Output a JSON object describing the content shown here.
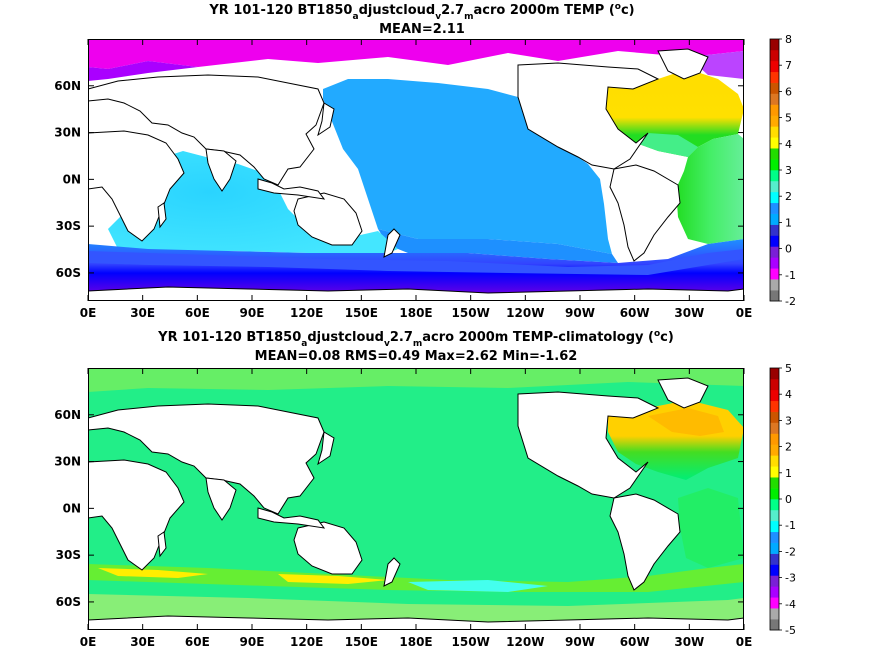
{
  "chart_data": [
    {
      "type": "heatmap",
      "title_parts": [
        "YR 101-120 BT1850",
        "a",
        "djustcloud",
        "v",
        "2.7",
        "m",
        "acro 2000m TEMP (",
        "o",
        "c)"
      ],
      "subtitle": "MEAN=2.11",
      "x_tick_labels": [
        "0E",
        "30E",
        "60E",
        "90E",
        "120E",
        "150E",
        "180E",
        "150W",
        "120W",
        "90W",
        "60W",
        "30W",
        "0E"
      ],
      "y_tick_labels": [
        "60N",
        "30N",
        "0N",
        "30S",
        "60S"
      ],
      "y_tick_values": [
        60,
        30,
        0,
        -30,
        -60
      ],
      "xlim": [
        0,
        360
      ],
      "ylim": [
        -78,
        90
      ],
      "colorbar_labels": [
        "-2",
        "-1",
        "0",
        "1",
        "2",
        "3",
        "4",
        "5",
        "6",
        "7",
        "8"
      ],
      "colorbar_values": [
        -2,
        -1,
        0,
        1,
        2,
        3,
        4,
        5,
        6,
        7,
        8
      ],
      "colorbar_colors": [
        "#777777",
        "#aaaaaa",
        "#ff00ff",
        "#aa00ff",
        "#7a1fd6",
        "#0000ff",
        "#3333cc",
        "#00aaff",
        "#1e90ff",
        "#00ffff",
        "#55eecc",
        "#00ff88",
        "#00ee00",
        "#22dd00",
        "#ffff00",
        "#ffdd00",
        "#ffaa00",
        "#ff9900",
        "#dd7722",
        "#cc5500",
        "#ff3300",
        "#ee0000",
        "#cc0000",
        "#990000"
      ],
      "regions": [
        {
          "lon": [
            90,
            290
          ],
          "lat": [
            -55,
            60
          ],
          "value": 2.2
        },
        {
          "lon": [
            25,
            115
          ],
          "lat": [
            -58,
            25
          ],
          "value": 2.6
        },
        {
          "lon": [
            300,
            360
          ],
          "lat": [
            -58,
            10
          ],
          "value": 3.4
        },
        {
          "lon": [
            300,
            355
          ],
          "lat": [
            10,
            70
          ],
          "value": 4.6
        },
        {
          "lon": [
            0,
            360
          ],
          "lat": [
            -78,
            -58
          ],
          "value": -0.8
        },
        {
          "lon": [
            0,
            360
          ],
          "lat": [
            -58,
            -50
          ],
          "value": 0.6
        },
        {
          "lon": [
            0,
            360
          ],
          "lat": [
            80,
            90
          ],
          "value": -0.9
        }
      ]
    },
    {
      "type": "heatmap",
      "title_parts": [
        "YR 101-120 BT1850",
        "a",
        "djustcloud",
        "v",
        "2.7",
        "m",
        "acro 2000m TEMP-climatology (",
        "o",
        "c)"
      ],
      "subtitle": "MEAN=0.08   RMS=0.49   Max=2.62   Min=-1.62",
      "x_tick_labels": [
        "0E",
        "30E",
        "60E",
        "90E",
        "120E",
        "150E",
        "180E",
        "150W",
        "120W",
        "90W",
        "60W",
        "30W",
        "0E"
      ],
      "y_tick_labels": [
        "60N",
        "30N",
        "0N",
        "30S",
        "60S"
      ],
      "y_tick_values": [
        60,
        30,
        0,
        -30,
        -60
      ],
      "xlim": [
        0,
        360
      ],
      "ylim": [
        -78,
        90
      ],
      "colorbar_labels": [
        "-5",
        "-4",
        "-3",
        "-2",
        "-1",
        "0",
        "1",
        "2",
        "3",
        "4",
        "5"
      ],
      "colorbar_values": [
        -5,
        -4,
        -3,
        -2,
        -1,
        0,
        1,
        2,
        3,
        4,
        5
      ],
      "colorbar_colors": [
        "#777777",
        "#aaaaaa",
        "#ff00ff",
        "#aa00ff",
        "#7a1fd6",
        "#0000ff",
        "#3333cc",
        "#00aaff",
        "#1e90ff",
        "#00ffff",
        "#55eecc",
        "#00ff88",
        "#00ee00",
        "#22dd00",
        "#ffff00",
        "#ffdd00",
        "#ffaa00",
        "#ff9900",
        "#dd7722",
        "#cc5500",
        "#ff3300",
        "#ee0000",
        "#cc0000",
        "#990000"
      ],
      "regions": [
        {
          "lon": [
            0,
            360
          ],
          "lat": [
            -78,
            90
          ],
          "value": 0.1
        },
        {
          "lon": [
            300,
            355
          ],
          "lat": [
            20,
            70
          ],
          "value": 1.5
        },
        {
          "lon": [
            0,
            360
          ],
          "lat": [
            -55,
            -45
          ],
          "value": 1.6
        },
        {
          "lon": [
            0,
            360
          ],
          "lat": [
            -78,
            -60
          ],
          "value": 0.5
        }
      ]
    }
  ]
}
